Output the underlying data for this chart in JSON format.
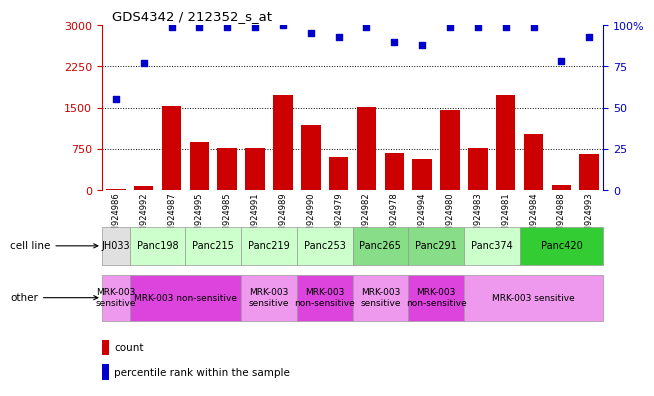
{
  "title": "GDS4342 / 212352_s_at",
  "samples": [
    "GSM924986",
    "GSM924992",
    "GSM924987",
    "GSM924995",
    "GSM924985",
    "GSM924991",
    "GSM924989",
    "GSM924990",
    "GSM924979",
    "GSM924982",
    "GSM924978",
    "GSM924994",
    "GSM924980",
    "GSM924983",
    "GSM924981",
    "GSM924984",
    "GSM924988",
    "GSM924993"
  ],
  "counts": [
    30,
    80,
    1530,
    870,
    770,
    770,
    1730,
    1180,
    600,
    1510,
    680,
    570,
    1450,
    770,
    1720,
    1020,
    95,
    650
  ],
  "percentiles": [
    55,
    77,
    99,
    99,
    99,
    99,
    100,
    95,
    93,
    99,
    90,
    88,
    99,
    99,
    99,
    99,
    78,
    93
  ],
  "ylim_left": [
    0,
    3000
  ],
  "ylim_right": [
    0,
    100
  ],
  "yticks_left": [
    0,
    750,
    1500,
    2250,
    3000
  ],
  "yticks_right": [
    0,
    25,
    50,
    75,
    100
  ],
  "bar_color": "#cc0000",
  "dot_color": "#0000cc",
  "cell_lines": [
    {
      "name": "JH033",
      "start": 0,
      "end": 1,
      "color": "#e0e0e0"
    },
    {
      "name": "Panc198",
      "start": 1,
      "end": 3,
      "color": "#ccffcc"
    },
    {
      "name": "Panc215",
      "start": 3,
      "end": 5,
      "color": "#ccffcc"
    },
    {
      "name": "Panc219",
      "start": 5,
      "end": 7,
      "color": "#ccffcc"
    },
    {
      "name": "Panc253",
      "start": 7,
      "end": 9,
      "color": "#ccffcc"
    },
    {
      "name": "Panc265",
      "start": 9,
      "end": 11,
      "color": "#88dd88"
    },
    {
      "name": "Panc291",
      "start": 11,
      "end": 13,
      "color": "#88dd88"
    },
    {
      "name": "Panc374",
      "start": 13,
      "end": 15,
      "color": "#ccffcc"
    },
    {
      "name": "Panc420",
      "start": 15,
      "end": 18,
      "color": "#33cc33"
    }
  ],
  "other_labels": [
    {
      "text": "MRK-003\nsensitive",
      "start": 0,
      "end": 1,
      "color": "#ee99ee"
    },
    {
      "text": "MRK-003 non-sensitive",
      "start": 1,
      "end": 5,
      "color": "#dd44dd"
    },
    {
      "text": "MRK-003\nsensitive",
      "start": 5,
      "end": 7,
      "color": "#ee99ee"
    },
    {
      "text": "MRK-003\nnon-sensitive",
      "start": 7,
      "end": 9,
      "color": "#dd44dd"
    },
    {
      "text": "MRK-003\nsensitive",
      "start": 9,
      "end": 11,
      "color": "#ee99ee"
    },
    {
      "text": "MRK-003\nnon-sensitive",
      "start": 11,
      "end": 13,
      "color": "#dd44dd"
    },
    {
      "text": "MRK-003 sensitive",
      "start": 13,
      "end": 18,
      "color": "#ee99ee"
    }
  ],
  "background_color": "#ffffff"
}
